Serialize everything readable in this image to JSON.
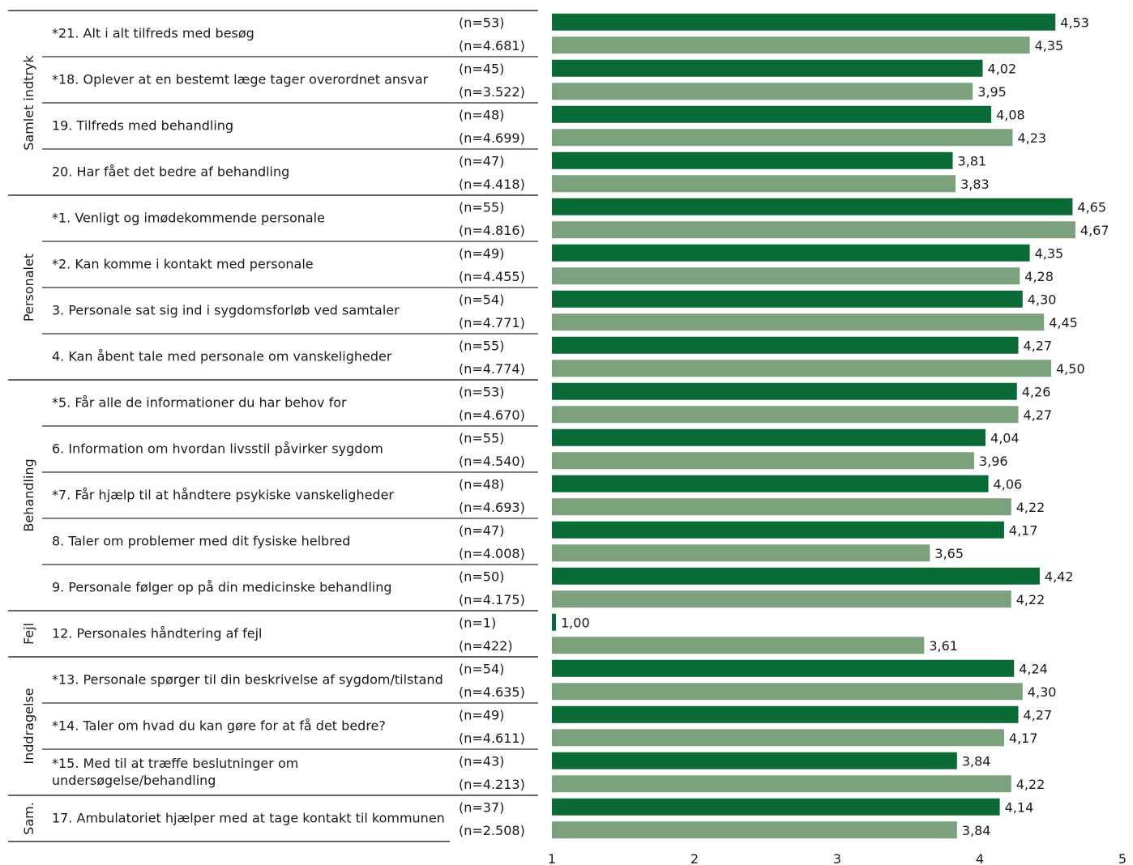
{
  "chart_data": {
    "type": "bar",
    "orientation": "horizontal",
    "xlim": [
      1,
      5
    ],
    "x_ticks": [
      "1",
      "2",
      "3",
      "4",
      "5"
    ],
    "grid": false,
    "colors": {
      "dark_bar": "#0b6b37",
      "light_bar": "#7ba27d"
    },
    "groups": [
      {
        "label": "Samlet indtryk",
        "questions": [
          {
            "label": "*21. Alt i alt tilfreds med besøg",
            "rows": [
              {
                "n": "(n=53)",
                "value": 4.53,
                "value_label": "4,53"
              },
              {
                "n": "(n=4.681)",
                "value": 4.35,
                "value_label": "4,35"
              }
            ]
          },
          {
            "label": "*18. Oplever at en bestemt læge tager overordnet ansvar",
            "rows": [
              {
                "n": "(n=45)",
                "value": 4.02,
                "value_label": "4,02"
              },
              {
                "n": "(n=3.522)",
                "value": 3.95,
                "value_label": "3,95"
              }
            ]
          },
          {
            "label": "19. Tilfreds med behandling",
            "rows": [
              {
                "n": "(n=48)",
                "value": 4.08,
                "value_label": "4,08"
              },
              {
                "n": "(n=4.699)",
                "value": 4.23,
                "value_label": "4,23"
              }
            ]
          },
          {
            "label": "20. Har fået det bedre af behandling",
            "rows": [
              {
                "n": "(n=47)",
                "value": 3.81,
                "value_label": "3,81"
              },
              {
                "n": "(n=4.418)",
                "value": 3.83,
                "value_label": "3,83"
              }
            ]
          }
        ]
      },
      {
        "label": "Personalet",
        "questions": [
          {
            "label": "*1. Venligt og imødekommende personale",
            "rows": [
              {
                "n": "(n=55)",
                "value": 4.65,
                "value_label": "4,65"
              },
              {
                "n": "(n=4.816)",
                "value": 4.67,
                "value_label": "4,67"
              }
            ]
          },
          {
            "label": "*2. Kan komme i kontakt med personale",
            "rows": [
              {
                "n": "(n=49)",
                "value": 4.35,
                "value_label": "4,35"
              },
              {
                "n": "(n=4.455)",
                "value": 4.28,
                "value_label": "4,28"
              }
            ]
          },
          {
            "label": "3. Personale sat sig ind i sygdomsforløb ved samtaler",
            "rows": [
              {
                "n": "(n=54)",
                "value": 4.3,
                "value_label": "4,30"
              },
              {
                "n": "(n=4.771)",
                "value": 4.45,
                "value_label": "4,45"
              }
            ]
          },
          {
            "label": "4. Kan åbent tale med personale om vanskeligheder",
            "rows": [
              {
                "n": "(n=55)",
                "value": 4.27,
                "value_label": "4,27"
              },
              {
                "n": "(n=4.774)",
                "value": 4.5,
                "value_label": "4,50"
              }
            ]
          }
        ]
      },
      {
        "label": "Behandling",
        "questions": [
          {
            "label": "*5. Får alle de informationer du har behov for",
            "rows": [
              {
                "n": "(n=53)",
                "value": 4.26,
                "value_label": "4,26"
              },
              {
                "n": "(n=4.670)",
                "value": 4.27,
                "value_label": "4,27"
              }
            ]
          },
          {
            "label": "6. Information om hvordan livsstil påvirker sygdom",
            "rows": [
              {
                "n": "(n=55)",
                "value": 4.04,
                "value_label": "4,04"
              },
              {
                "n": "(n=4.540)",
                "value": 3.96,
                "value_label": "3,96"
              }
            ]
          },
          {
            "label": "*7. Får hjælp til at håndtere psykiske vanskeligheder",
            "rows": [
              {
                "n": "(n=48)",
                "value": 4.06,
                "value_label": "4,06"
              },
              {
                "n": "(n=4.693)",
                "value": 4.22,
                "value_label": "4,22"
              }
            ]
          },
          {
            "label": "8. Taler om problemer med dit fysiske helbred",
            "rows": [
              {
                "n": "(n=47)",
                "value": 4.17,
                "value_label": "4,17"
              },
              {
                "n": "(n=4.008)",
                "value": 3.65,
                "value_label": "3,65"
              }
            ]
          },
          {
            "label": "9. Personale følger op på din medicinske behandling",
            "rows": [
              {
                "n": "(n=50)",
                "value": 4.42,
                "value_label": "4,42"
              },
              {
                "n": "(n=4.175)",
                "value": 4.22,
                "value_label": "4,22"
              }
            ]
          }
        ]
      },
      {
        "label": "Fejl",
        "questions": [
          {
            "label": "12. Personales håndtering af fejl",
            "rows": [
              {
                "n": "(n=1)",
                "value": 1.0,
                "value_label": "1,00"
              },
              {
                "n": "(n=422)",
                "value": 3.61,
                "value_label": "3,61"
              }
            ]
          }
        ]
      },
      {
        "label": "Inddragelse",
        "questions": [
          {
            "label": "*13. Personale spørger til din beskrivelse af sygdom/tilstand",
            "rows": [
              {
                "n": "(n=54)",
                "value": 4.24,
                "value_label": "4,24"
              },
              {
                "n": "(n=4.635)",
                "value": 4.3,
                "value_label": "4,30"
              }
            ]
          },
          {
            "label": "*14. Taler om hvad du kan gøre for at få det bedre?",
            "rows": [
              {
                "n": "(n=49)",
                "value": 4.27,
                "value_label": "4,27"
              },
              {
                "n": "(n=4.611)",
                "value": 4.17,
                "value_label": "4,17"
              }
            ]
          },
          {
            "label": "*15. Med til at træffe beslutninger om undersøgelse/behandling",
            "rows": [
              {
                "n": "(n=43)",
                "value": 3.84,
                "value_label": "3,84"
              },
              {
                "n": "(n=4.213)",
                "value": 4.22,
                "value_label": "4,22"
              }
            ]
          }
        ]
      },
      {
        "label": "Sam.",
        "questions": [
          {
            "label": "17. Ambulatoriet hjælper med at tage kontakt til kommunen",
            "rows": [
              {
                "n": "(n=37)",
                "value": 4.14,
                "value_label": "4,14"
              },
              {
                "n": "(n=2.508)",
                "value": 3.84,
                "value_label": "3,84"
              }
            ]
          }
        ]
      }
    ]
  }
}
